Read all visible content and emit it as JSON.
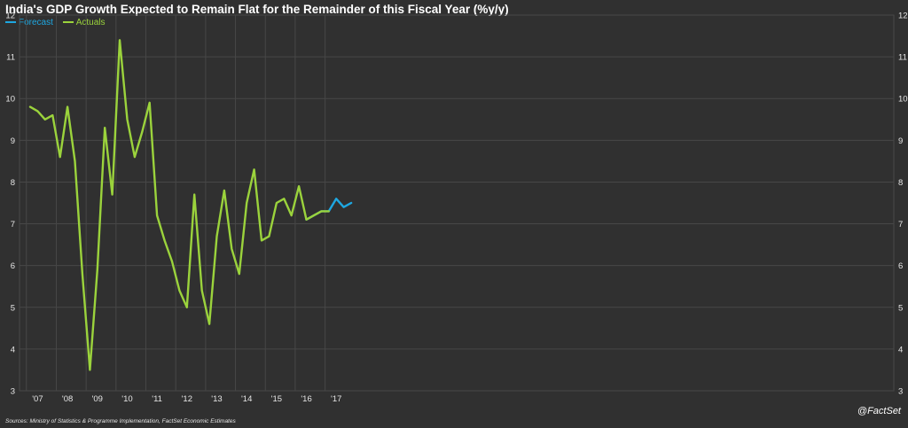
{
  "title": "India's GDP Growth Expected to Remain Flat for the Remainder of this Fiscal Year (%y/y)",
  "legend": [
    {
      "label": "Forecast",
      "color": "#1ea7e1"
    },
    {
      "label": "Actuals",
      "color": "#9bd33c"
    }
  ],
  "sources": "Sources: Ministry of Statistics & Programme Implementation, FactSet Economic Estimates",
  "brand": "@FactSet",
  "colors": {
    "background": "#303030",
    "grid": "#474747",
    "axis_text": "#e6e6e6"
  },
  "chart_data": {
    "type": "line",
    "title": "India's GDP Growth Expected to Remain Flat for the Remainder of this Fiscal Year (%y/y)",
    "xlabel": "",
    "ylabel": "",
    "ylim": [
      3,
      12
    ],
    "yticks": [
      3,
      4,
      5,
      6,
      7,
      8,
      9,
      10,
      11,
      12
    ],
    "xticks": [
      "'07",
      "'08",
      "'09",
      "'10",
      "'11",
      "'12",
      "'13",
      "'14",
      "'15",
      "'16",
      "'17"
    ],
    "x_unit": "quarter index (0 = first plotted quarter; tick years fall at 1, 5, 9, ... )",
    "grid": true,
    "legend_position": "top-left",
    "series": [
      {
        "name": "Actuals",
        "color": "#9bd33c",
        "x": [
          0,
          1,
          2,
          3,
          4,
          5,
          6,
          7,
          8,
          9,
          10,
          11,
          12,
          13,
          14,
          15,
          16,
          17,
          18,
          19,
          20,
          21,
          22,
          23,
          24,
          25,
          26,
          27,
          28,
          29,
          30,
          31,
          32,
          33,
          34,
          35,
          36,
          37,
          38,
          39,
          40
        ],
        "values": [
          9.8,
          9.7,
          9.5,
          9.6,
          8.6,
          9.8,
          8.5,
          5.8,
          3.5,
          5.9,
          9.3,
          7.7,
          11.4,
          9.5,
          8.6,
          9.2,
          9.9,
          7.2,
          6.6,
          6.1,
          5.4,
          5.0,
          7.7,
          5.4,
          4.6,
          6.7,
          7.8,
          6.4,
          5.8,
          7.5,
          8.3,
          6.6,
          6.7,
          7.5,
          7.6,
          7.2,
          7.9,
          7.1,
          7.2,
          7.3,
          7.3
        ]
      },
      {
        "name": "Forecast",
        "color": "#1ea7e1",
        "x": [
          37,
          38,
          39,
          40,
          41,
          42,
          43
        ],
        "values": [
          7.1,
          7.2,
          7.3,
          7.3,
          7.6,
          7.4,
          7.5
        ]
      }
    ]
  }
}
